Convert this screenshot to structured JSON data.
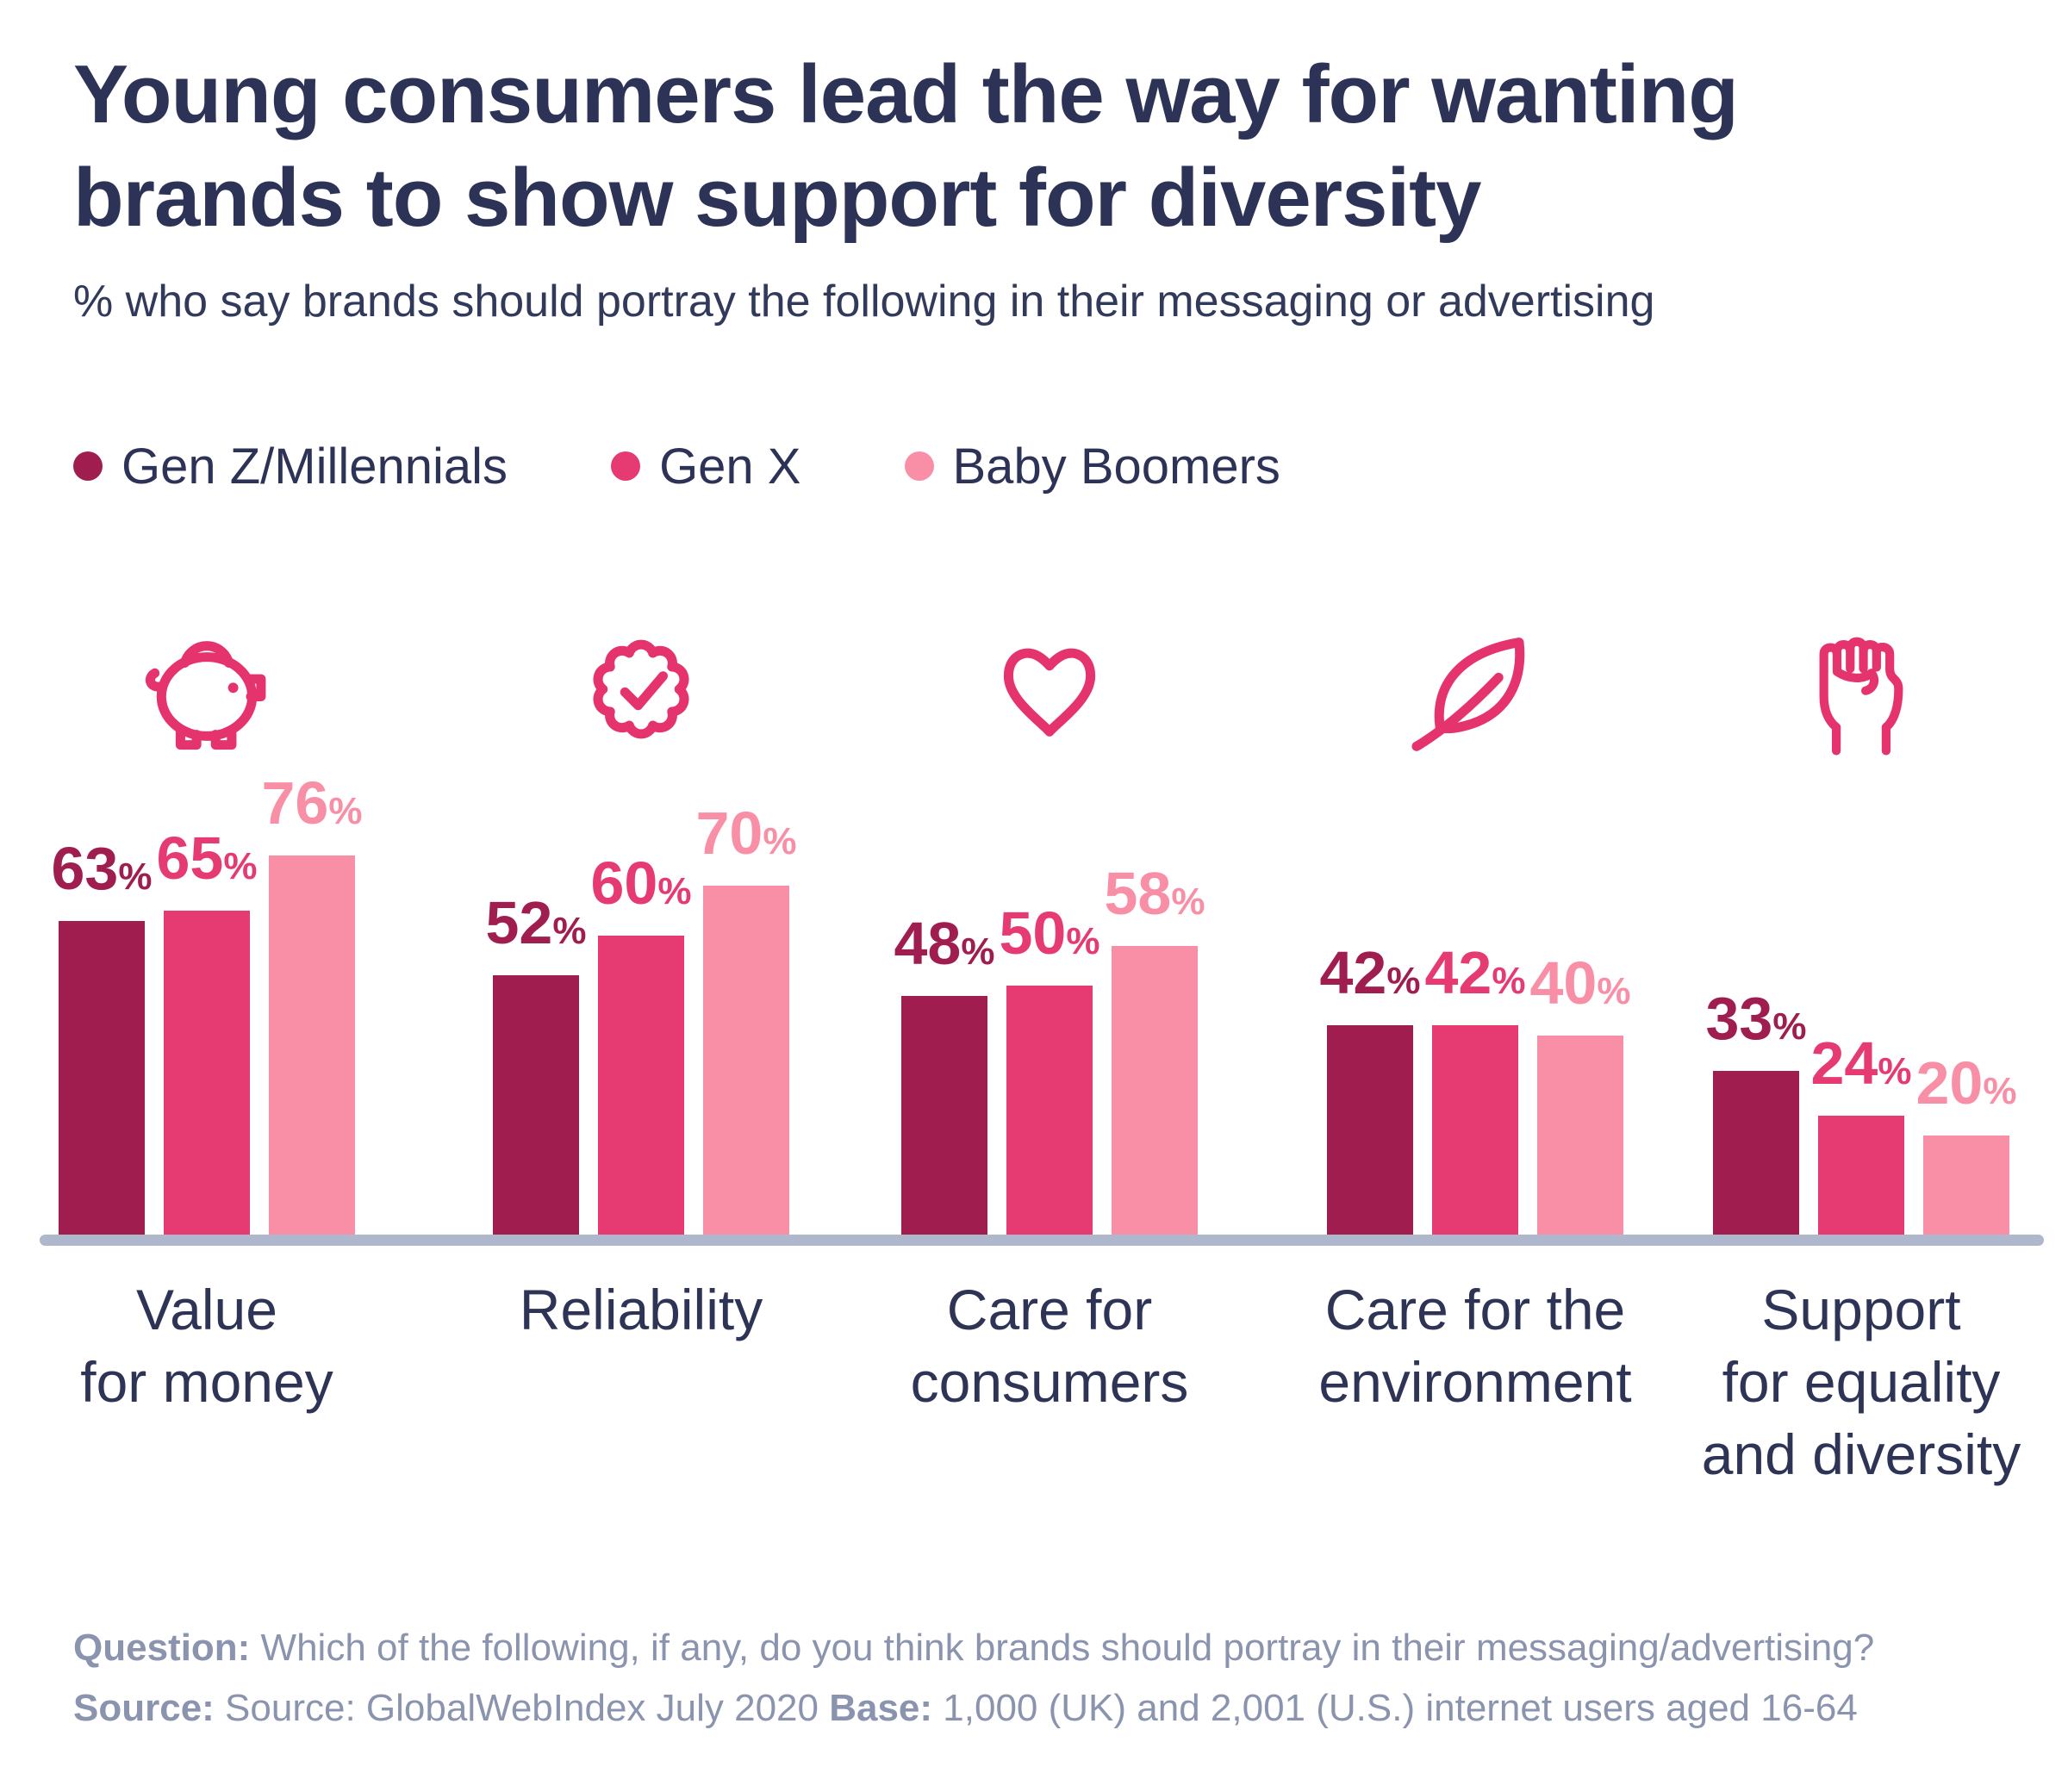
{
  "header": {
    "title_line1": "Young consumers lead the way for wanting",
    "title_line2": "brands to show support for diversity",
    "subtitle": "% who say brands should portray the following in their messaging or advertising"
  },
  "legend": [
    {
      "label": "Gen Z/Millennials",
      "color": "#a01d4f"
    },
    {
      "label": "Gen X",
      "color": "#e53a72"
    },
    {
      "label": "Baby Boomers",
      "color": "#f98fa6"
    }
  ],
  "chart_data": {
    "type": "bar",
    "title": "Young consumers lead the way for wanting brands to show support for diversity",
    "subtitle": "% who say brands should portray the following in their messaging or advertising",
    "unit": "%",
    "ylim": [
      0,
      100
    ],
    "grid": false,
    "legend_position": "top-left",
    "categories": [
      {
        "label": "Value for money",
        "label_lines": [
          "Value",
          "for money"
        ],
        "icon": "piggy-bank-icon"
      },
      {
        "label": "Reliability",
        "label_lines": [
          "Reliability"
        ],
        "icon": "badge-check-icon"
      },
      {
        "label": "Care for consumers",
        "label_lines": [
          "Care for",
          "consumers"
        ],
        "icon": "heart-icon"
      },
      {
        "label": "Care for the environment",
        "label_lines": [
          "Care for the",
          "environment"
        ],
        "icon": "leaf-icon"
      },
      {
        "label": "Support for equality and diversity",
        "label_lines": [
          "Support",
          "for equality",
          "and diversity"
        ],
        "icon": "raised-fist-icon"
      }
    ],
    "series": [
      {
        "name": "Gen Z/Millennials",
        "color": "#a01d4f",
        "values": [
          63,
          52,
          48,
          42,
          33
        ]
      },
      {
        "name": "Gen X",
        "color": "#e53a72",
        "values": [
          65,
          60,
          50,
          42,
          24
        ]
      },
      {
        "name": "Baby Boomers",
        "color": "#f98fa6",
        "values": [
          76,
          70,
          58,
          40,
          20
        ]
      }
    ],
    "icon_color": "#e5336e",
    "axis_line_color": "#aeb7cc"
  },
  "footer": {
    "line1": [
      {
        "text": "Question:",
        "bold": true
      },
      {
        "text": " Which of the following, if any, do you think brands should portray in their messaging/advertising?",
        "bold": false
      }
    ],
    "line2": [
      {
        "text": "Source:",
        "bold": true
      },
      {
        "text": " Source: GlobalWebIndex July 2020 ",
        "bold": false
      },
      {
        "text": "Base:",
        "bold": true
      },
      {
        "text": " 1,000 (UK) and 2,001 (U.S.) internet users aged 16-64",
        "bold": false
      }
    ]
  }
}
